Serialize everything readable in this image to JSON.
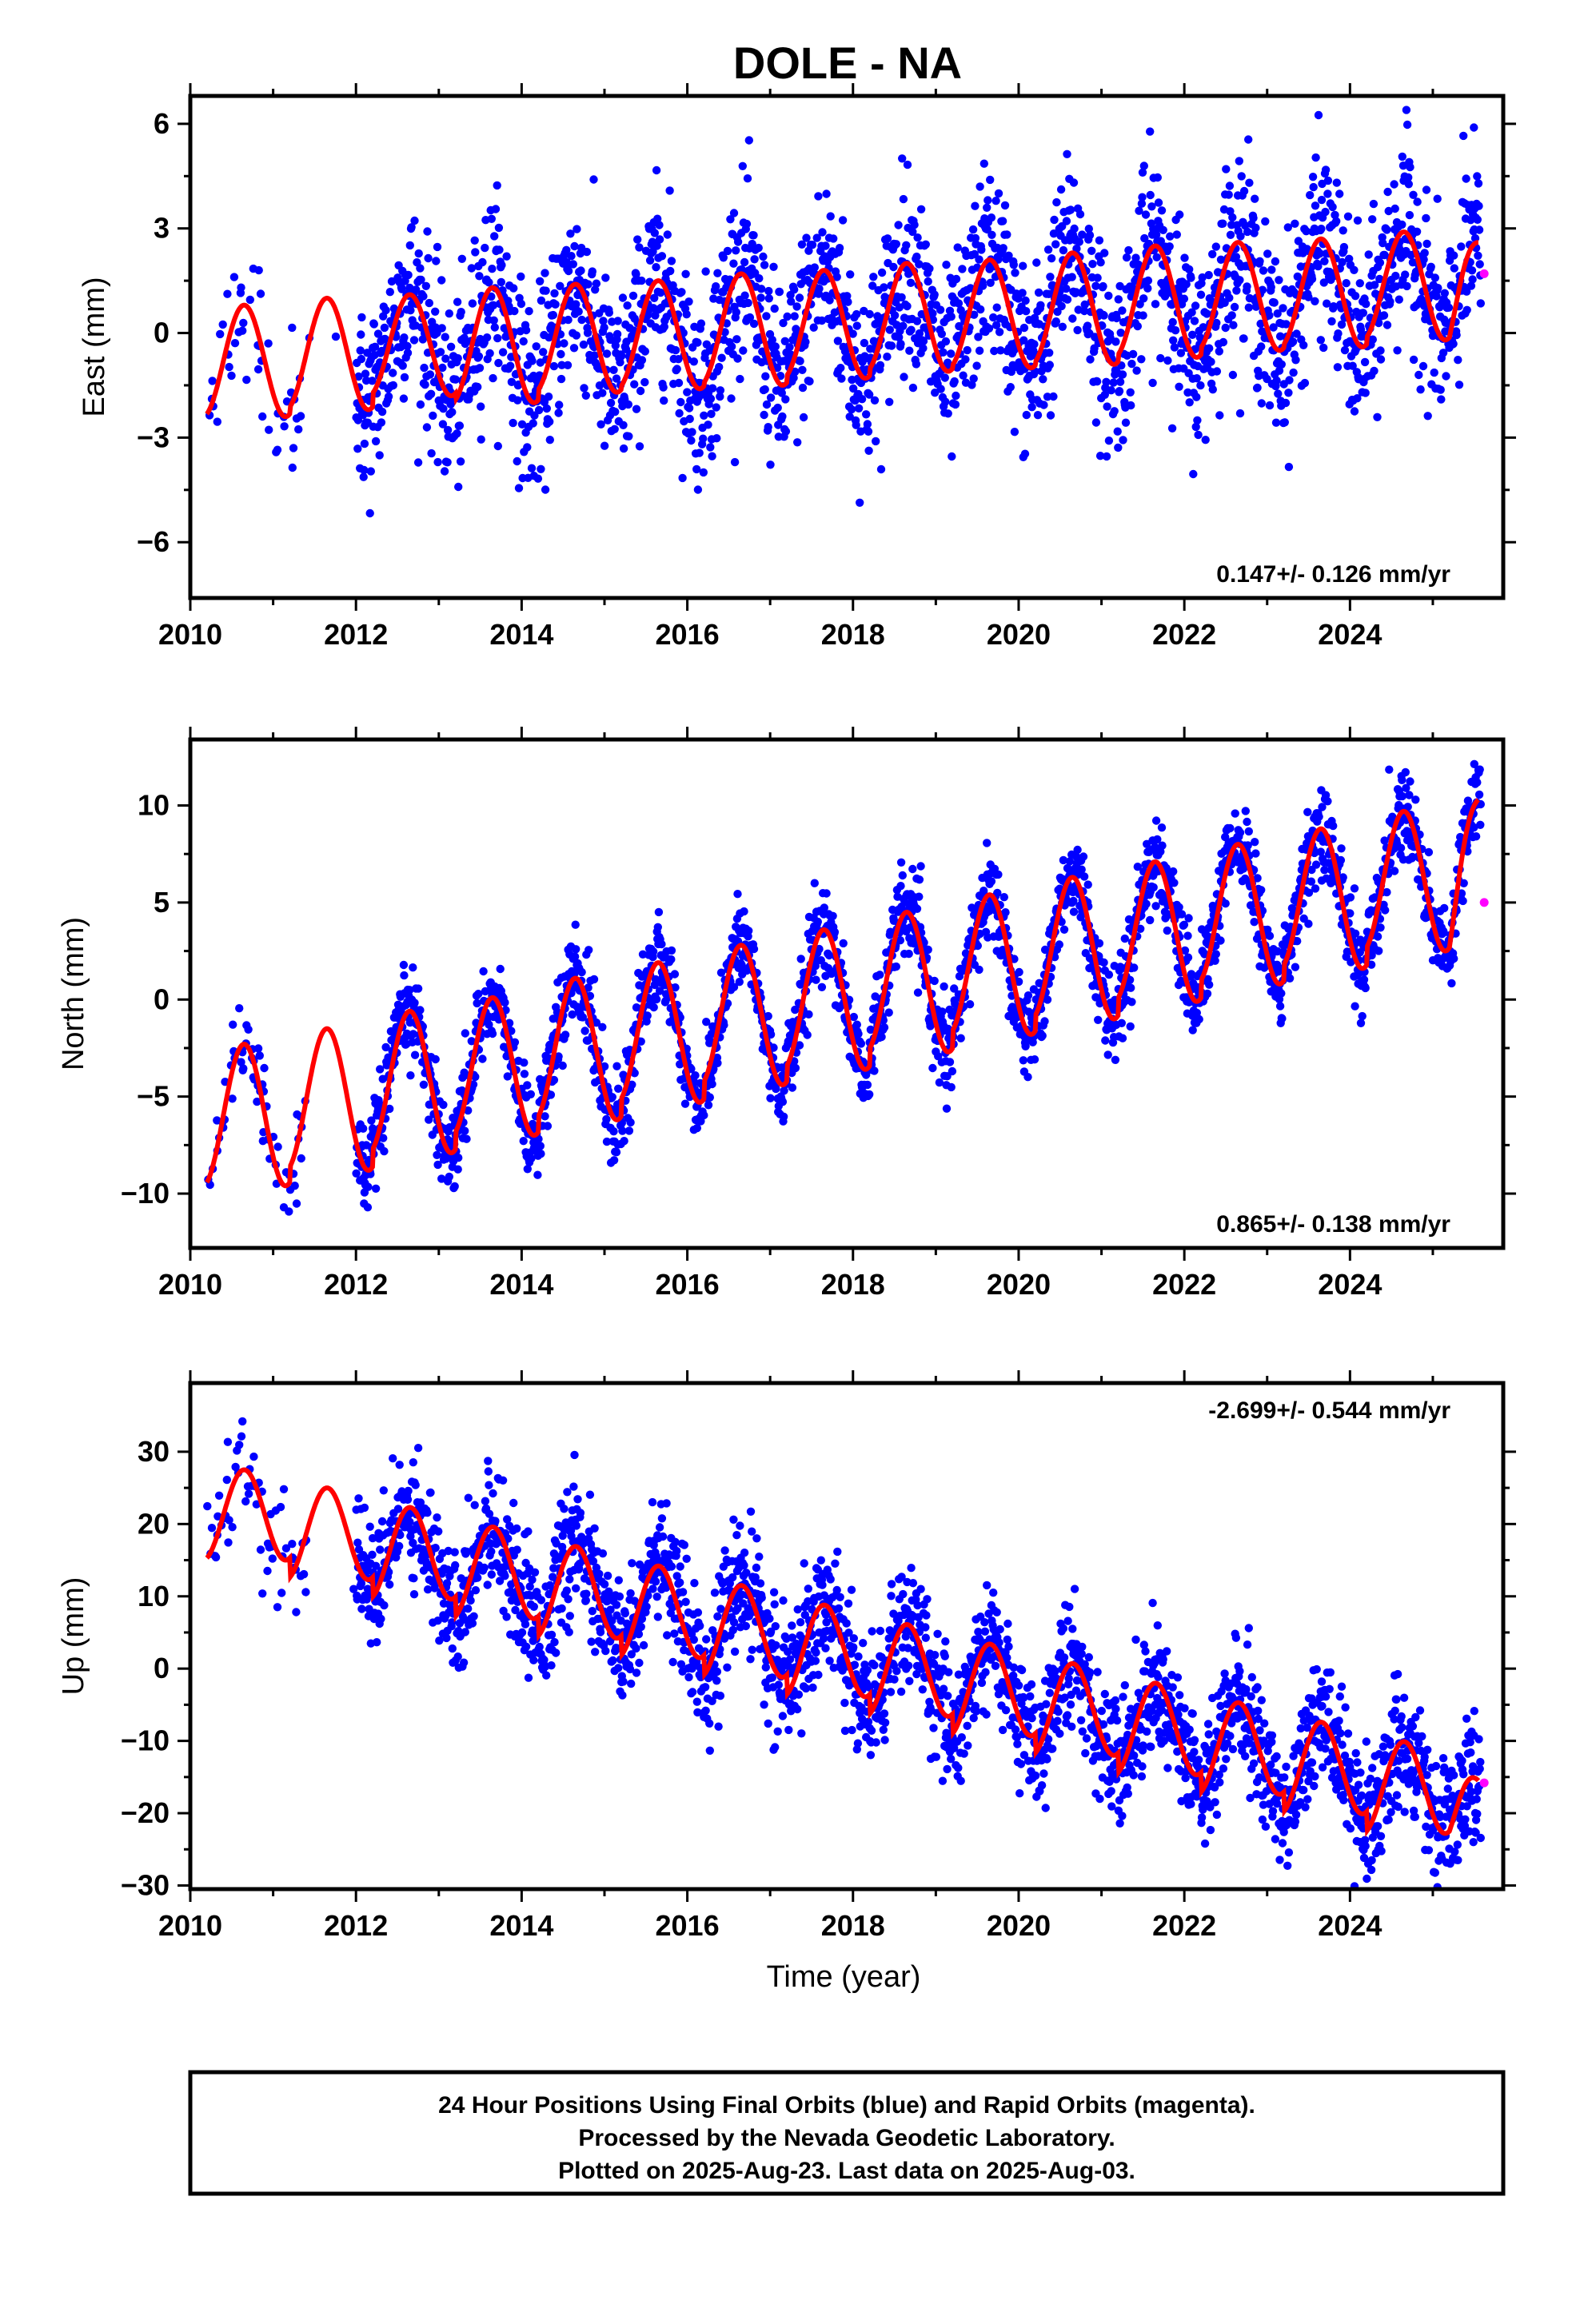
{
  "title": "DOLE - NA",
  "footer": {
    "line1": "24 Hour Positions Using Final Orbits (blue) and Rapid Orbits (magenta).",
    "line2": "Processed by the Nevada Geodetic Laboratory.",
    "line3": "Plotted on 2025-Aug-23. Last data on 2025-Aug-03."
  },
  "colors": {
    "final_points": "#0000ff",
    "rapid_points": "#ff00ff",
    "model_curve": "#ff0000",
    "frame": "#000000"
  },
  "chart_data": [
    {
      "type": "scatter",
      "component": "east",
      "ylabel": "East (mm)",
      "xlabel": "",
      "xlim": [
        2010.0,
        2025.85
      ],
      "ylim": [
        -7.6,
        6.8
      ],
      "x_ticks": [
        2010,
        2012,
        2014,
        2016,
        2018,
        2020,
        2022,
        2024
      ],
      "x_tick_labels": [
        "2010",
        "2012",
        "2014",
        "2016",
        "2018",
        "2020",
        "2022",
        "2024"
      ],
      "y_ticks": [
        -6,
        -3,
        0,
        3,
        6
      ],
      "y_tick_labels": [
        "−6",
        "−3",
        "0",
        "3",
        "6"
      ],
      "rate_text": "0.147+/- 0.126 mm/yr",
      "rate_position": "bottom-right",
      "model": {
        "start": 2010.2,
        "end": 2025.55,
        "annual_peak_values": [
          0.8,
          1.0,
          1.1,
          1.3,
          1.4,
          1.5,
          1.7,
          1.8,
          2.0,
          2.1,
          2.3,
          2.5,
          2.6,
          2.7,
          2.9
        ],
        "annual_trough_values": [
          -2.4,
          -2.2,
          -1.8,
          -2.0,
          -1.7,
          -1.6,
          -1.5,
          -1.3,
          -1.1,
          -1.0,
          -0.9,
          -0.7,
          -0.5,
          -0.4,
          -0.2
        ],
        "end_value": 2.6
      },
      "final_observations": {
        "start": 2010.2,
        "end": 2025.58,
        "gap": [
          2011.4,
          2012.0
        ],
        "scatter_mm": 1.3
      },
      "rapid_points": [
        {
          "x": 2025.62,
          "y": 1.7
        }
      ]
    },
    {
      "type": "scatter",
      "component": "north",
      "ylabel": "North (mm)",
      "xlabel": "",
      "xlim": [
        2010.0,
        2025.85
      ],
      "ylim": [
        -12.8,
        13.4
      ],
      "x_ticks": [
        2010,
        2012,
        2014,
        2016,
        2018,
        2020,
        2022,
        2024
      ],
      "x_tick_labels": [
        "2010",
        "2012",
        "2014",
        "2016",
        "2018",
        "2020",
        "2022",
        "2024"
      ],
      "y_ticks": [
        -10,
        -5,
        0,
        5,
        10
      ],
      "y_tick_labels": [
        "−10",
        "−5",
        "0",
        "5",
        "10"
      ],
      "rate_text": "0.865+/- 0.138 mm/yr",
      "rate_position": "bottom-right",
      "model": {
        "start": 2010.2,
        "end": 2025.55,
        "annual_peak_values": [
          -2.3,
          -1.5,
          -0.6,
          0.1,
          1.1,
          1.9,
          2.8,
          3.6,
          4.5,
          5.4,
          6.3,
          7.1,
          8.0,
          8.8,
          9.7
        ],
        "annual_trough_values": [
          -9.6,
          -8.8,
          -7.9,
          -7.0,
          -6.2,
          -5.3,
          -4.4,
          -3.6,
          -2.7,
          -1.8,
          -1.0,
          -0.1,
          0.8,
          1.6,
          2.5
        ],
        "end_value": 10.3
      },
      "final_observations": {
        "start": 2010.2,
        "end": 2025.58,
        "gap": [
          2011.4,
          2012.0
        ],
        "scatter_mm": 1.1
      },
      "rapid_points": [
        {
          "x": 2025.62,
          "y": 5.0
        }
      ]
    },
    {
      "type": "scatter",
      "component": "up",
      "ylabel": "Up (mm)",
      "xlabel": "Time (year)",
      "xlim": [
        2010.0,
        2025.85
      ],
      "ylim": [
        -30.5,
        39.5
      ],
      "x_ticks": [
        2010,
        2012,
        2014,
        2016,
        2018,
        2020,
        2022,
        2024
      ],
      "x_tick_labels": [
        "2010",
        "2012",
        "2014",
        "2016",
        "2018",
        "2020",
        "2022",
        "2024"
      ],
      "y_ticks": [
        -30,
        -20,
        -10,
        0,
        10,
        20,
        30
      ],
      "y_tick_labels": [
        "−30",
        "−20",
        "−10",
        "0",
        "10",
        "20",
        "30"
      ],
      "rate_text": "-2.699+/- 0.544 mm/yr",
      "rate_position": "top-right",
      "model": {
        "start": 2010.2,
        "end": 2025.55,
        "annual_peak_values": [
          27.5,
          25.0,
          22.3,
          19.6,
          16.9,
          14.2,
          11.5,
          8.8,
          6.1,
          3.4,
          0.7,
          -2.0,
          -4.7,
          -7.4,
          -10.1
        ],
        "annual_trough_values": [
          15.0,
          12.3,
          9.6,
          6.9,
          4.2,
          1.5,
          -1.2,
          -3.9,
          -6.6,
          -9.3,
          -12.0,
          -14.7,
          -17.4,
          -20.1,
          -22.8
        ],
        "end_value": -15.5
      },
      "final_observations": {
        "start": 2010.2,
        "end": 2025.58,
        "gap": [
          2011.4,
          2012.0
        ],
        "scatter_mm": 4.2
      },
      "rapid_points": [
        {
          "x": 2025.62,
          "y": -15.8
        }
      ]
    }
  ]
}
